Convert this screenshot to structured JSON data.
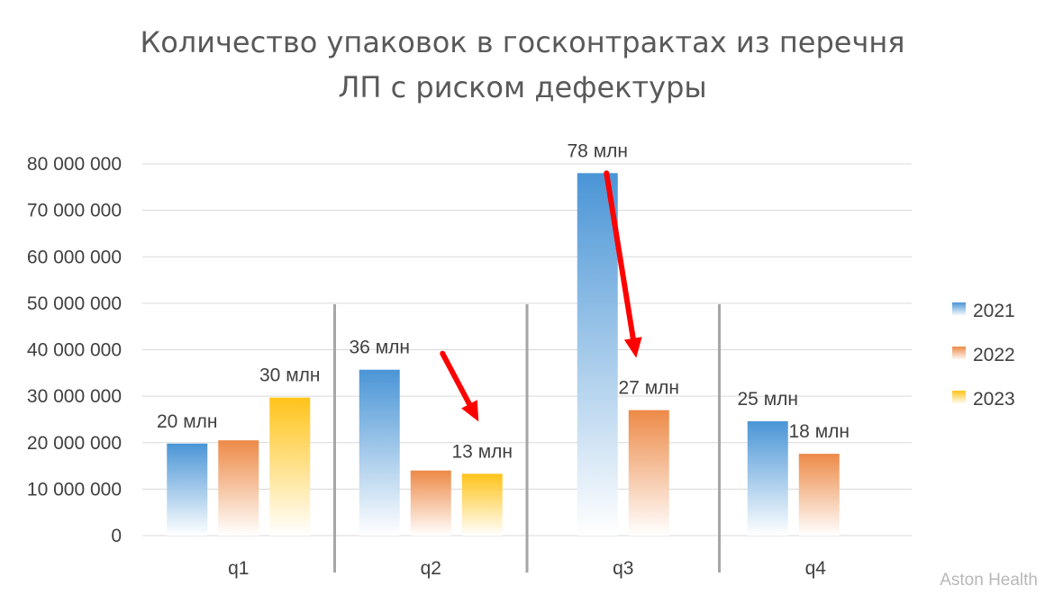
{
  "chart_data": {
    "type": "bar",
    "title": [
      "Количество упаковок в госконтрактах из перечня",
      "ЛП с риском дефектуры"
    ],
    "xlabel": "",
    "ylabel": "",
    "categories": [
      "q1",
      "q2",
      "q3",
      "q4"
    ],
    "series": [
      {
        "name": "2021",
        "color": "#4a95d6",
        "values": [
          19800000,
          35700000,
          78000000,
          24600000
        ],
        "labels": [
          "20 млн",
          "36 млн",
          "78 млн",
          "25 млн"
        ]
      },
      {
        "name": "2022",
        "color": "#ed8a47",
        "values": [
          20500000,
          14000000,
          27000000,
          17600000
        ],
        "labels": [
          "",
          "",
          "27 млн",
          "18 млн"
        ]
      },
      {
        "name": "2023",
        "color": "#ffc319",
        "values": [
          29700000,
          13300000,
          null,
          null
        ],
        "labels": [
          "30 млн",
          "13 млн",
          "",
          ""
        ]
      }
    ],
    "ylim": [
      0,
      80000000
    ],
    "yticks": [
      0,
      10000000,
      20000000,
      30000000,
      40000000,
      50000000,
      60000000,
      70000000,
      80000000
    ],
    "ytick_labels": [
      "0",
      "10 000 000",
      "20 000 000",
      "30 000 000",
      "40 000 000",
      "50 000 000",
      "60 000 000",
      "70 000 000",
      "80 000 000"
    ],
    "grid": true,
    "legend": "right",
    "annotations": [
      {
        "type": "arrow",
        "color": "#ff0000",
        "from": {
          "category": "q2",
          "series": "2021"
        },
        "to": {
          "category": "q2",
          "series": "2023"
        }
      },
      {
        "type": "arrow",
        "color": "#ff0000",
        "from": {
          "category": "q3",
          "series": "2021"
        },
        "to": {
          "category": "q3",
          "series": "2022"
        }
      }
    ]
  },
  "watermark": "Aston Health"
}
